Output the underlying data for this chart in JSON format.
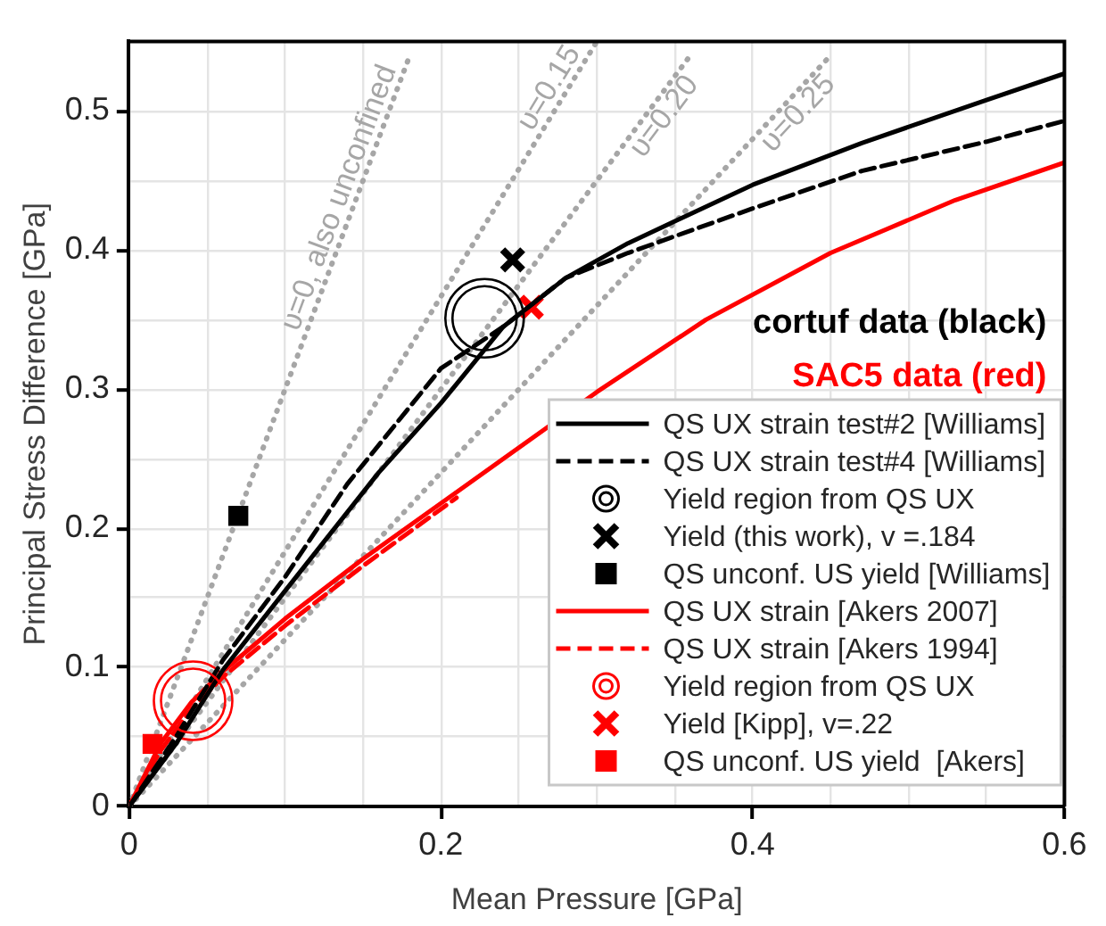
{
  "chart_data": {
    "type": "line",
    "xlabel": "Mean Pressure [GPa]",
    "ylabel": "Principal Stress Difference [GPa]",
    "xlim": [
      0,
      0.6
    ],
    "ylim": [
      0,
      0.55
    ],
    "xticks": [
      0,
      {
        "value": 0.05,
        "label": null
      },
      {
        "value": 0.1,
        "label": null
      },
      {
        "value": 0.15,
        "label": null
      },
      0.2,
      {
        "value": 0.25,
        "label": null
      },
      {
        "value": 0.3,
        "label": null
      },
      {
        "value": 0.35,
        "label": null
      },
      0.4,
      {
        "value": 0.45,
        "label": null
      },
      {
        "value": 0.5,
        "label": null
      },
      {
        "value": 0.55,
        "label": null
      },
      0.6
    ],
    "yticks": [
      0,
      {
        "value": 0.05,
        "label": null
      },
      0.1,
      {
        "value": 0.15,
        "label": null
      },
      0.2,
      {
        "value": 0.25,
        "label": null
      },
      0.3,
      {
        "value": 0.35,
        "label": null
      },
      0.4,
      {
        "value": 0.45,
        "label": null
      },
      0.5
    ],
    "grid": true,
    "legend": "bottom right",
    "annotations": [
      "cortuf data (black)",
      "SAC5 data (red)"
    ],
    "series": [
      {
        "name": "QS UX strain test#2 [Williams]",
        "line_style": "solid",
        "color": "#000000",
        "x": [
          0,
          0.03,
          0.06,
          0.1,
          0.16,
          0.2,
          0.24,
          0.28,
          0.32,
          0.4,
          0.47,
          0.55,
          0.6
        ],
        "values": [
          0,
          0.045,
          0.098,
          0.155,
          0.24,
          0.29,
          0.345,
          0.38,
          0.405,
          0.447,
          0.477,
          0.508,
          0.527
        ]
      },
      {
        "name": "QS UX strain test#4 [Williams]",
        "line_style": "dashed",
        "color": "#000000",
        "x": [
          0,
          0.03,
          0.06,
          0.1,
          0.14,
          0.2,
          0.24,
          0.28,
          0.32,
          0.4,
          0.47,
          0.55,
          0.6
        ],
        "values": [
          0,
          0.05,
          0.105,
          0.165,
          0.232,
          0.315,
          0.345,
          0.38,
          0.398,
          0.43,
          0.457,
          0.478,
          0.493
        ]
      },
      {
        "name": "Yield region from QS UX",
        "type": "scatter",
        "marker": "circle",
        "color": "#000000",
        "x": [
          0.228
        ],
        "values": [
          0.351
        ]
      },
      {
        "name": "Yield (this work), v =.184",
        "type": "scatter",
        "marker": "cross",
        "color": "#000000",
        "x": [
          0.246
        ],
        "values": [
          0.393
        ]
      },
      {
        "name": "QS unconf. US yield [Williams]",
        "type": "scatter",
        "marker": "square",
        "color": "#000000",
        "x": [
          0.07
        ],
        "values": [
          0.209
        ]
      },
      {
        "name": "QS UX strain [Akers 2007]",
        "line_style": "solid",
        "color": "#ff0000",
        "x": [
          0,
          0.02,
          0.04,
          0.06,
          0.1,
          0.15,
          0.21,
          0.3,
          0.37,
          0.45,
          0.53,
          0.6
        ],
        "values": [
          0,
          0.045,
          0.075,
          0.097,
          0.135,
          0.178,
          0.226,
          0.298,
          0.35,
          0.398,
          0.436,
          0.463
        ]
      },
      {
        "name": "QS UX strain [Akers 1994]",
        "line_style": "dashed",
        "color": "#ff0000",
        "x": [
          0,
          0.02,
          0.04,
          0.06,
          0.1,
          0.15,
          0.21
        ],
        "values": [
          0,
          0.04,
          0.07,
          0.093,
          0.13,
          0.173,
          0.222
        ]
      },
      {
        "name": "Yield region from QS UX",
        "type": "scatter",
        "marker": "circle",
        "color": "#ff0000",
        "x": [
          0.041
        ],
        "values": [
          0.076
        ]
      },
      {
        "name": "Yield [Kipp], v=.22",
        "type": "scatter",
        "marker": "cross",
        "color": "#ff0000",
        "x": [
          0.258
        ],
        "values": [
          0.359
        ]
      },
      {
        "name": "QS unconf. US yield  [Akers]",
        "type": "scatter",
        "marker": "square",
        "color": "#ff0000",
        "x": [
          0.015
        ],
        "values": [
          0.045
        ]
      },
      {
        "name": "υ=0, also unconfined",
        "line_style": "dotted",
        "color": "#a6a6a6",
        "x": [
          0,
          0.18
        ],
        "values": [
          0,
          0.54
        ]
      },
      {
        "name": "υ=0.15",
        "line_style": "dotted",
        "color": "#a6a6a6",
        "x": [
          0,
          0.3
        ],
        "values": [
          0,
          0.55
        ]
      },
      {
        "name": "υ=0.20",
        "line_style": "dotted",
        "color": "#a6a6a6",
        "x": [
          0,
          0.36
        ],
        "values": [
          0,
          0.54
        ]
      },
      {
        "name": "υ=0.25",
        "line_style": "dotted",
        "color": "#a6a6a6",
        "x": [
          0,
          0.45
        ],
        "values": [
          0,
          0.54
        ]
      }
    ]
  }
}
